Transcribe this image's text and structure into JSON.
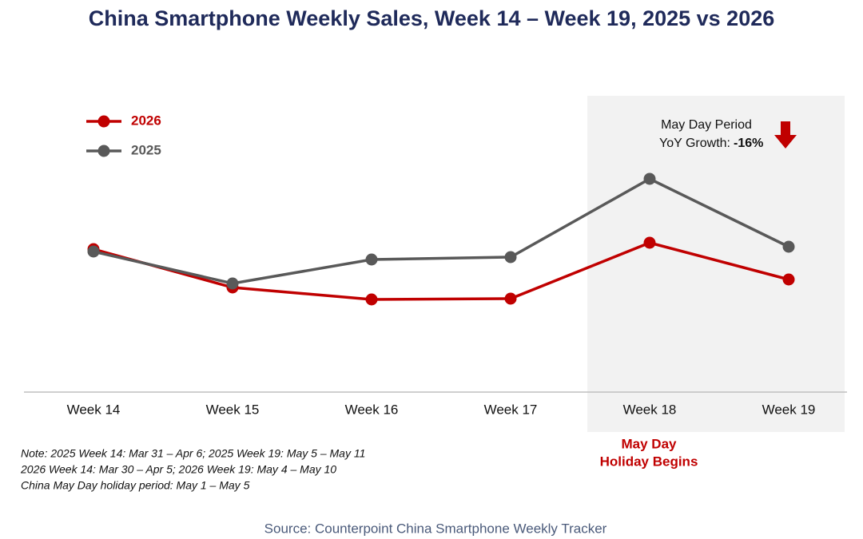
{
  "chart_data": {
    "type": "line",
    "title": "China Smartphone Weekly Sales, Week 14 – Week 19, 2025 vs 2026",
    "categories": [
      "Week 14",
      "Week 15",
      "Week 16",
      "Week 17",
      "Week 18",
      "Week 19"
    ],
    "series": [
      {
        "name": "2026",
        "color": "#c00000",
        "values": [
          179,
          131,
          116,
          117,
          187,
          141
        ]
      },
      {
        "name": "2025",
        "color": "#595959",
        "values": [
          176,
          136,
          166,
          169,
          267,
          182
        ]
      }
    ],
    "ylim": [
      0,
      400
    ],
    "legend": "upper left",
    "annotations": {
      "period_title": "May Day Period",
      "growth_label": "YoY Growth:",
      "growth_value": "-16%",
      "holiday_line1": "May Day",
      "holiday_line2": "Holiday Begins"
    },
    "notes": [
      "Note: 2025 Week 14: Mar 31 – Apr 6; 2025 Week 19: May 5 – May 11",
      "2026 Week 14: Mar 30 – Apr 5; 2026 Week 19: May 4 – May 10",
      "China May Day holiday period: May 1 – May 5"
    ],
    "source": "Source: Counterpoint China Smartphone Weekly Tracker"
  }
}
